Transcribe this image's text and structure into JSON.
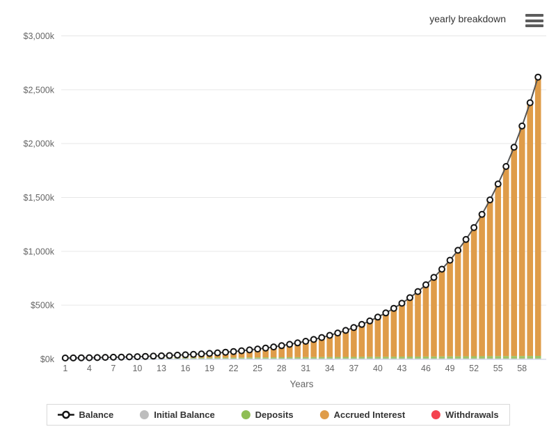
{
  "header": {
    "context_label": "yearly breakdown",
    "menu_icon": "hamburger-menu-icon"
  },
  "chart_data": {
    "type": "combo",
    "subtype": "line-over-stacked-columns",
    "title": "",
    "xlabel": "Years",
    "ylabel": "",
    "y_unit": "thousands of dollars ($k)",
    "y_max": 3000,
    "grid": true,
    "legend_position": "bottom",
    "y_ticks": [
      {
        "value": 0,
        "label": "$0k"
      },
      {
        "value": 500,
        "label": "$500k"
      },
      {
        "value": 1000,
        "label": "$1,000k"
      },
      {
        "value": 1500,
        "label": "$1,500k"
      },
      {
        "value": 2000,
        "label": "$2,000k"
      },
      {
        "value": 2500,
        "label": "$2,500k"
      },
      {
        "value": 3000,
        "label": "$3,000k"
      }
    ],
    "x_tick_years": [
      1,
      4,
      7,
      10,
      13,
      16,
      19,
      22,
      25,
      28,
      31,
      34,
      37,
      40,
      43,
      46,
      49,
      52,
      55,
      58
    ],
    "years": [
      1,
      2,
      3,
      4,
      5,
      6,
      7,
      8,
      9,
      10,
      11,
      12,
      13,
      14,
      15,
      16,
      17,
      18,
      19,
      20,
      21,
      22,
      23,
      24,
      25,
      26,
      27,
      28,
      29,
      30,
      31,
      32,
      33,
      34,
      35,
      36,
      37,
      38,
      39,
      40,
      41,
      42,
      43,
      44,
      45,
      46,
      47,
      48,
      49,
      50,
      51,
      52,
      53,
      54,
      55,
      56,
      57,
      58,
      59,
      60
    ],
    "series": [
      {
        "name": "Balance",
        "type": "line",
        "color": "#545454",
        "marker": "hollow-circle",
        "values": [
          9.5,
          10.4,
          11.4,
          12.6,
          13.8,
          15.2,
          16.7,
          18.4,
          20.3,
          22.3,
          24.5,
          27,
          29.7,
          32.6,
          35.9,
          39.5,
          43.4,
          47.8,
          52.6,
          57.8,
          63.6,
          70,
          77,
          84.7,
          93.1,
          102.4,
          112.7,
          124,
          136.4,
          150,
          165,
          181.5,
          199.6,
          219.6,
          241.6,
          265.7,
          292.3,
          321.5,
          353.7,
          389,
          428,
          470.8,
          517.8,
          569.6,
          626.6,
          689.2,
          758.1,
          834,
          917.4,
          1009.1,
          1110,
          1221,
          1343.1,
          1477.4,
          1625.2,
          1787.7,
          1966.4,
          2163.1,
          2379.4,
          2617.3
        ]
      },
      {
        "name": "Initial Balance",
        "type": "column",
        "color": "#bdbdbd",
        "values": [
          5,
          5,
          5,
          5,
          5,
          5,
          5,
          5,
          5,
          5,
          5,
          5,
          5,
          5,
          5,
          5,
          5,
          5,
          5,
          5,
          5,
          5,
          5,
          5,
          5,
          5,
          5,
          5,
          5,
          5,
          5,
          5,
          5,
          5,
          5,
          5,
          5,
          5,
          5,
          5,
          5,
          5,
          5,
          5,
          5,
          5,
          5,
          5,
          5,
          5,
          5,
          5,
          5,
          5,
          5,
          5,
          5,
          5,
          5,
          5
        ]
      },
      {
        "name": "Deposits",
        "type": "column",
        "color": "#9cc468",
        "values": [
          0.4,
          0.8,
          1.2,
          1.6,
          2,
          2.4,
          2.8,
          3.2,
          3.6,
          4,
          4.4,
          4.8,
          5.2,
          5.6,
          6,
          6.4,
          6.8,
          7.2,
          7.6,
          8,
          8.4,
          8.8,
          9.2,
          9.6,
          10,
          10.4,
          10.8,
          11.2,
          11.6,
          12,
          12.4,
          12.8,
          13.2,
          13.6,
          14,
          14.4,
          14.8,
          15.2,
          15.6,
          16,
          16.4,
          16.8,
          17.2,
          17.6,
          18,
          18.4,
          18.8,
          19.2,
          19.6,
          20,
          20.4,
          20.8,
          21.2,
          21.6,
          22,
          22.4,
          22.8,
          23.2,
          23.6,
          24
        ]
      },
      {
        "name": "Accrued Interest",
        "type": "column",
        "color": "#df9c49",
        "values": [
          4.1,
          4.6,
          5.2,
          6,
          6.8,
          7.8,
          8.9,
          10.2,
          11.7,
          13.3,
          15.1,
          17.2,
          19.5,
          22,
          24.9,
          28.1,
          31.6,
          35.6,
          40,
          44.8,
          50.2,
          56.2,
          62.8,
          70.1,
          78.1,
          87,
          96.9,
          107.8,
          119.8,
          133,
          147.6,
          163.7,
          181.4,
          201,
          222.6,
          246.3,
          272.5,
          301.3,
          333.1,
          368,
          406.6,
          449,
          495.6,
          547,
          603.6,
          665.8,
          734.3,
          809.8,
          892.8,
          984.1,
          1084.6,
          1195.2,
          1316.9,
          1450.8,
          1598.2,
          1760.3,
          1938.6,
          2134.9,
          2350.8,
          2588.3
        ]
      },
      {
        "name": "Withdrawals",
        "type": "column",
        "color": "#f4434f",
        "values": [
          0,
          0,
          0,
          0,
          0,
          0,
          0,
          0,
          0,
          0,
          0,
          0,
          0,
          0,
          0,
          0,
          0,
          0,
          0,
          0,
          0,
          0,
          0,
          0,
          0,
          0,
          0,
          0,
          0,
          0,
          0,
          0,
          0,
          0,
          0,
          0,
          0,
          0,
          0,
          0,
          0,
          0,
          0,
          0,
          0,
          0,
          0,
          0,
          0,
          0,
          0,
          0,
          0,
          0,
          0,
          0,
          0,
          0,
          0,
          0
        ]
      }
    ]
  },
  "legend": {
    "items": [
      {
        "label": "Balance",
        "glyph": "line-hollow-circle",
        "color": "#141414"
      },
      {
        "label": "Initial Balance",
        "glyph": "circle",
        "color": "#bdbdbd"
      },
      {
        "label": "Deposits",
        "glyph": "circle",
        "color": "#8fbe55"
      },
      {
        "label": "Accrued Interest",
        "glyph": "circle",
        "color": "#df9c49"
      },
      {
        "label": "Withdrawals",
        "glyph": "circle",
        "color": "#f4434f"
      }
    ]
  },
  "colors": {
    "grid_line": "#e6e6e6",
    "axis_line": "#ccd6eb",
    "tick_text": "#666666",
    "balance_line": "#545454",
    "marker_stroke": "#141414"
  }
}
